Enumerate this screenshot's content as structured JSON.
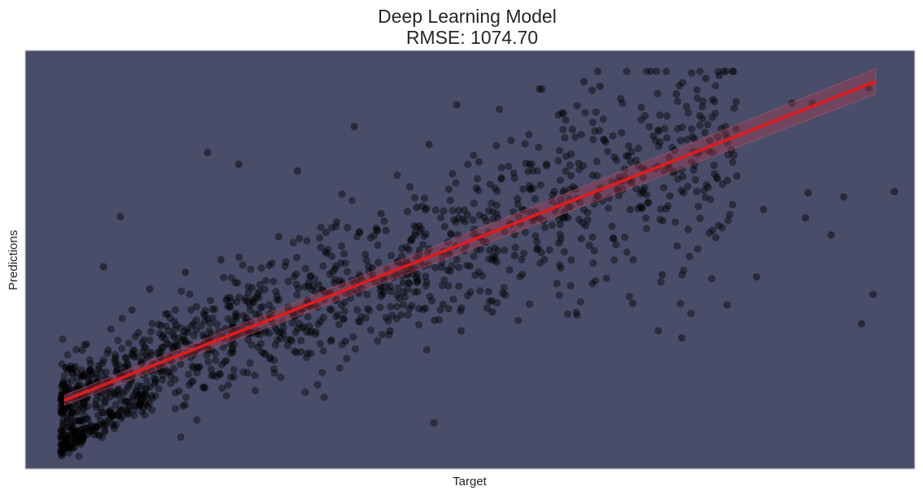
{
  "chart_data": {
    "type": "scatter",
    "title": "Deep Learning Model",
    "subtitle": "RMSE: 1074.70",
    "xlabel": "Target",
    "ylabel": "Predictions",
    "x_ticks_shown": false,
    "y_ticks_shown": false,
    "grid": false,
    "xlim": [
      0,
      100
    ],
    "ylim": [
      0,
      100
    ],
    "colors": {
      "plot_background": "#4a4d6a",
      "points": "#000000",
      "regression_line": "#e41a1c",
      "confidence_band": "#b03a4e"
    },
    "regression_line": {
      "x": [
        4.4,
        95.6
      ],
      "y": [
        16.4,
        92.6
      ],
      "band_halfwidth_end": 3.0,
      "band_halfwidth_start": 1.2
    },
    "point_count_estimate": 1500,
    "points_sample": [
      [
        4.3,
        5.0
      ],
      [
        4.6,
        5.4
      ],
      [
        5.0,
        5.1
      ],
      [
        5.3,
        5.8
      ],
      [
        5.6,
        6.2
      ],
      [
        6.0,
        6.5
      ],
      [
        6.3,
        7.0
      ],
      [
        6.6,
        7.6
      ],
      [
        7.0,
        8.3
      ],
      [
        7.3,
        9.0
      ],
      [
        5.2,
        10.8
      ],
      [
        6.0,
        11.4
      ],
      [
        7.0,
        12.0
      ],
      [
        8.2,
        12.8
      ],
      [
        9.5,
        13.4
      ],
      [
        10.6,
        14.1
      ],
      [
        11.8,
        14.9
      ],
      [
        6.5,
        15.8
      ],
      [
        8.0,
        16.4
      ],
      [
        9.5,
        17.2
      ],
      [
        11.0,
        18.0
      ],
      [
        12.5,
        18.8
      ],
      [
        14.0,
        19.6
      ],
      [
        7.2,
        20.4
      ],
      [
        9.2,
        21.3
      ],
      [
        11.4,
        22.2
      ],
      [
        13.5,
        23.1
      ],
      [
        15.6,
        24.0
      ],
      [
        8.8,
        26.0
      ],
      [
        12.0,
        27.5
      ],
      [
        15.5,
        29.0
      ],
      [
        18.0,
        30.5
      ],
      [
        20.0,
        32.0
      ],
      [
        22.5,
        33.5
      ],
      [
        25.0,
        35.0
      ],
      [
        27.5,
        36.0
      ],
      [
        30.0,
        37.5
      ],
      [
        32.5,
        39.0
      ],
      [
        35.0,
        40.5
      ],
      [
        37.5,
        42.0
      ],
      [
        40.0,
        43.5
      ],
      [
        42.5,
        44.5
      ],
      [
        45.0,
        46.0
      ],
      [
        47.5,
        47.5
      ],
      [
        50.0,
        48.5
      ],
      [
        52.5,
        50.0
      ],
      [
        55.0,
        51.0
      ],
      [
        57.5,
        52.5
      ],
      [
        60.0,
        54.0
      ],
      [
        62.5,
        55.0
      ],
      [
        10.7,
        60.3
      ],
      [
        8.8,
        48.3
      ],
      [
        20.5,
        75.6
      ],
      [
        24.0,
        72.8
      ],
      [
        30.6,
        71.2
      ],
      [
        37.0,
        81.8
      ],
      [
        45.4,
        77.5
      ],
      [
        48.5,
        87.0
      ],
      [
        51.0,
        73.4
      ],
      [
        57.8,
        90.8
      ],
      [
        62.8,
        92.5
      ],
      [
        64.6,
        91.4
      ],
      [
        73.2,
        89.6
      ],
      [
        76.5,
        93.3
      ],
      [
        78.0,
        94.0
      ],
      [
        86.2,
        87.4
      ],
      [
        88.5,
        87.3
      ],
      [
        94.8,
        91.0
      ],
      [
        97.7,
        66.3
      ],
      [
        95.3,
        41.7
      ],
      [
        94.0,
        34.7
      ],
      [
        90.6,
        55.9
      ],
      [
        87.7,
        60.0
      ],
      [
        82.2,
        45.9
      ],
      [
        78.9,
        39.2
      ],
      [
        73.8,
        31.3
      ],
      [
        68.3,
        39.6
      ],
      [
        71.6,
        46.4
      ],
      [
        66.1,
        55.2
      ],
      [
        63.0,
        58.1
      ],
      [
        59.2,
        64.0
      ],
      [
        53.5,
        69.3
      ],
      [
        49.7,
        60.7
      ],
      [
        44.0,
        62.5
      ],
      [
        40.0,
        61.0
      ],
      [
        35.0,
        59.0
      ],
      [
        28.5,
        55.5
      ],
      [
        22.0,
        50.0
      ],
      [
        18.0,
        47.0
      ],
      [
        14.0,
        43.0
      ],
      [
        12.0,
        38.0
      ],
      [
        16.0,
        37.0
      ],
      [
        26.0,
        41.0
      ],
      [
        33.0,
        44.0
      ],
      [
        39.0,
        48.0
      ],
      [
        47.0,
        52.0
      ],
      [
        55.0,
        56.0
      ],
      [
        61.0,
        60.0
      ],
      [
        68.0,
        62.0
      ],
      [
        74.0,
        66.0
      ],
      [
        80.0,
        70.0
      ],
      [
        83.0,
        62.0
      ],
      [
        88.0,
        66.0
      ],
      [
        92.0,
        65.0
      ],
      [
        31.0,
        28.0
      ],
      [
        36.0,
        30.5
      ],
      [
        41.0,
        33.0
      ],
      [
        46.0,
        35.5
      ],
      [
        49.0,
        33.0
      ],
      [
        52.5,
        37.5
      ]
    ]
  }
}
